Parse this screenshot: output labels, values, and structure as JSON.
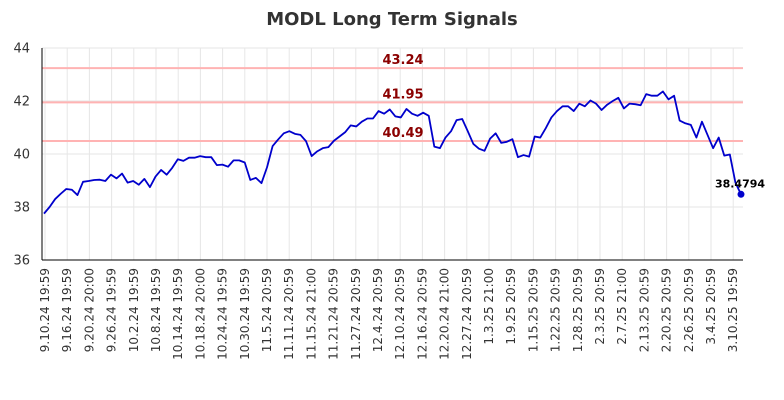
{
  "chart_data": {
    "type": "line",
    "title": "MODL Long Term Signals",
    "xlabel": "",
    "ylabel": "",
    "ylim": [
      36,
      44
    ],
    "yticks": [
      "36",
      "38",
      "40",
      "42",
      "44"
    ],
    "grid": true,
    "x_tick_labels": [
      "9.10.24 19:59",
      "9.16.24 19:59",
      "9.20.24 20:00",
      "9.26.24 19:59",
      "10.2.24 19:59",
      "10.8.24 19:59",
      "10.14.24 19:59",
      "10.18.24 20:00",
      "10.24.24 19:59",
      "10.30.24 19:59",
      "11.5.24 20:59",
      "11.11.24 20:59",
      "11.15.24 21:00",
      "11.21.24 20:59",
      "11.27.24 20:59",
      "12.4.24 20:59",
      "12.10.24 20:59",
      "12.16.24 20:59",
      "12.20.24 21:00",
      "12.27.24 20:59",
      "1.3.25 21:00",
      "1.9.25 20:59",
      "1.15.25 20:59",
      "1.22.25 20:59",
      "1.28.25 20:59",
      "2.3.25 20:59",
      "2.7.25 21:00",
      "2.13.25 20:59",
      "2.20.25 20:59",
      "2.26.25 20:59",
      "3.4.25 20:59",
      "3.10.25 19:59"
    ],
    "horizontal_lines": [
      {
        "value": 43.24,
        "label": "43.24"
      },
      {
        "value": 41.95,
        "label": "41.95"
      },
      {
        "value": 40.49,
        "label": "40.49"
      }
    ],
    "series": [
      {
        "values": [
          37.75,
          38.0,
          38.3,
          38.5,
          38.68,
          38.65,
          38.45,
          38.95,
          38.98,
          39.02,
          39.03,
          38.98,
          39.22,
          39.08,
          39.26,
          38.92,
          38.98,
          38.84,
          39.06,
          38.75,
          39.15,
          39.4,
          39.22,
          39.48,
          39.8,
          39.74,
          39.86,
          39.86,
          39.92,
          39.88,
          39.88,
          39.58,
          39.6,
          39.52,
          39.76,
          39.76,
          39.68,
          39.02,
          39.1,
          38.9,
          39.5,
          40.3,
          40.55,
          40.78,
          40.86,
          40.76,
          40.72,
          40.48,
          39.92,
          40.1,
          40.22,
          40.26,
          40.5,
          40.66,
          40.82,
          41.08,
          41.04,
          41.22,
          41.34,
          41.34,
          41.62,
          41.52,
          41.68,
          41.42,
          41.38,
          41.7,
          41.52,
          41.44,
          41.56,
          41.44,
          40.28,
          40.22,
          40.62,
          40.86,
          41.28,
          41.32,
          40.86,
          40.38,
          40.2,
          40.12,
          40.58,
          40.78,
          40.42,
          40.46,
          40.56,
          39.88,
          39.96,
          39.9,
          40.66,
          40.62,
          40.98,
          41.38,
          41.62,
          41.8,
          41.8,
          41.62,
          41.9,
          41.8,
          42.02,
          41.9,
          41.66,
          41.86,
          42.0,
          42.12,
          41.72,
          41.9,
          41.88,
          41.84,
          42.26,
          42.2,
          42.2,
          42.36,
          42.06,
          42.2,
          41.26,
          41.16,
          41.1,
          40.62,
          41.22,
          40.72,
          40.22,
          40.62,
          39.94,
          39.98,
          38.92,
          38.4794
        ],
        "last_label": "38.4794",
        "color": "#0000cc"
      }
    ],
    "colors": {
      "line": "#0000cc",
      "hline": "#ffb3b3",
      "hline_label": "#8b0000",
      "grid": "#e6e6e6",
      "axis": "#000000"
    }
  }
}
